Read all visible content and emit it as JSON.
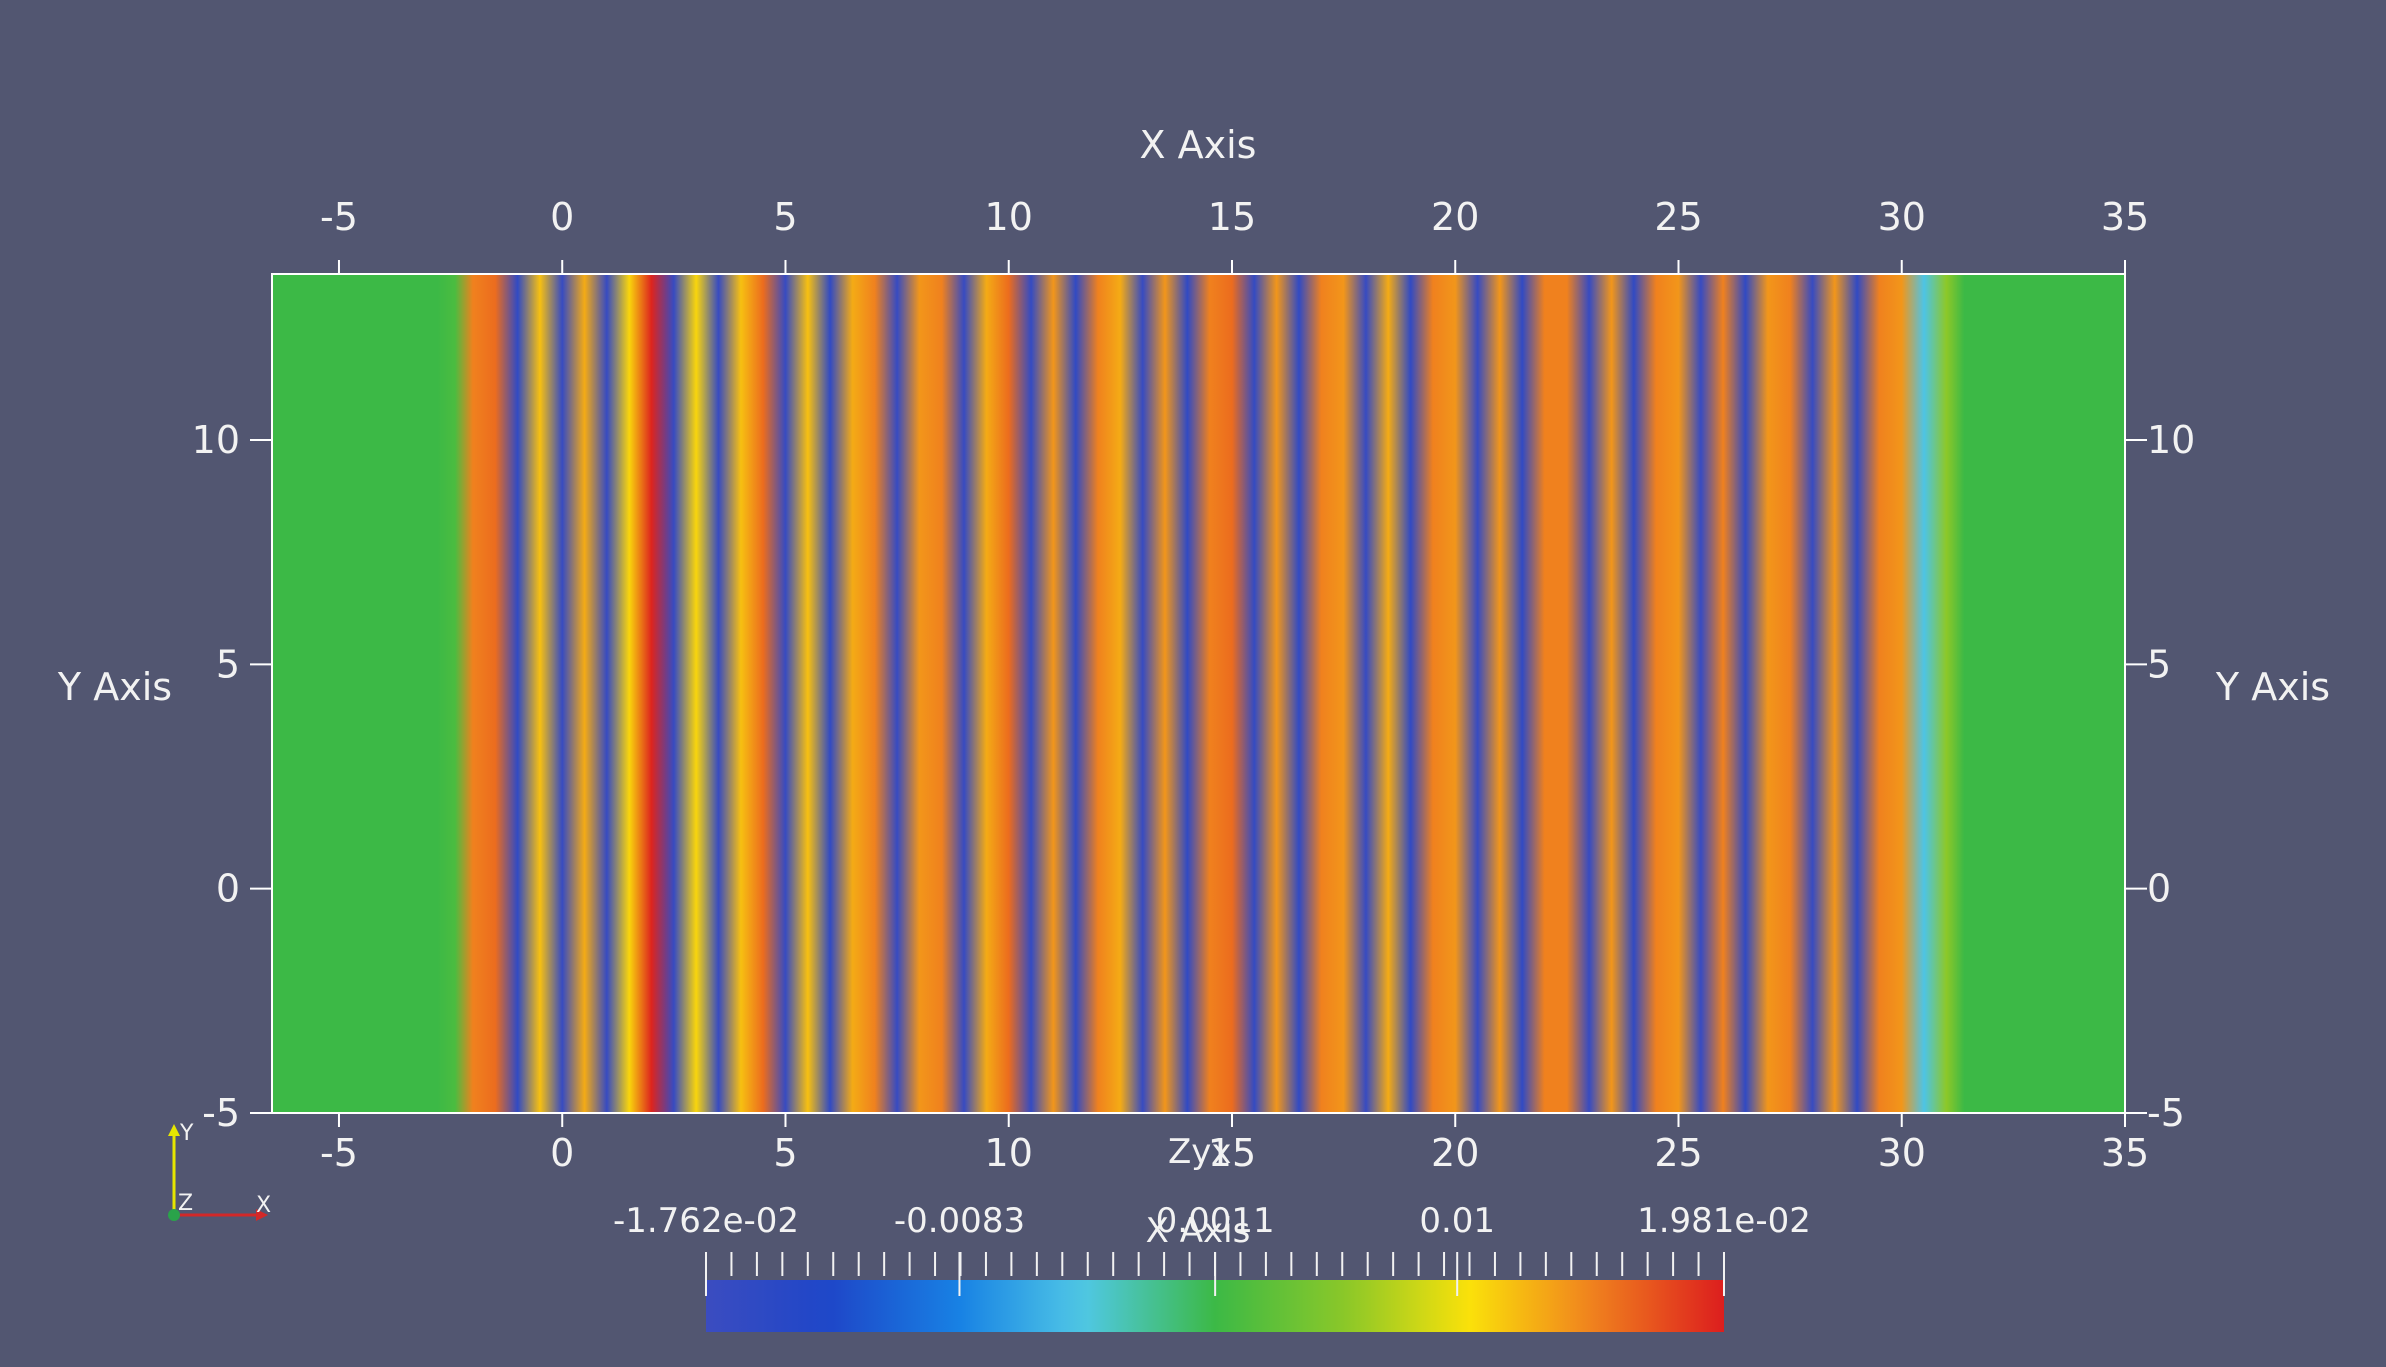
{
  "chart_data": {
    "type": "heatmap",
    "title": "",
    "xlabel": "X Axis",
    "ylabel": "Y Axis",
    "xlim": [
      -6.5,
      35
    ],
    "ylim": [
      -5,
      13.7
    ],
    "xticks": [
      -5,
      0,
      5,
      10,
      15,
      20,
      25,
      30,
      35
    ],
    "yticks": [
      -5,
      0,
      5,
      10
    ],
    "field": {
      "description_values": "vertical bands: scalar field varies only along x",
      "x": [
        -6.5,
        -2.8,
        -2.4,
        -2.0,
        -1.5,
        -1.0,
        -0.5,
        0.0,
        0.5,
        1.0,
        1.5,
        2.0,
        2.5,
        3.0,
        3.5,
        4.0,
        4.5,
        5.0,
        5.5,
        6.0,
        6.5,
        7.0,
        7.5,
        8.0,
        8.5,
        9.0,
        9.5,
        10.0,
        10.5,
        11.0,
        11.5,
        12.0,
        12.5,
        13.0,
        13.5,
        14.0,
        14.5,
        15.0,
        15.5,
        16.0,
        16.5,
        17.0,
        17.5,
        18.0,
        18.5,
        19.0,
        19.5,
        20.0,
        20.5,
        21.0,
        21.5,
        22.0,
        22.5,
        23.0,
        23.5,
        24.0,
        24.5,
        25.0,
        25.5,
        26.0,
        26.5,
        27.0,
        27.5,
        28.0,
        28.5,
        29.0,
        29.5,
        30.0,
        30.5,
        31.0,
        31.4,
        35.0
      ],
      "value": [
        0.0011,
        0.0011,
        0.002,
        0.015,
        0.016,
        -0.016,
        0.012,
        -0.017,
        0.013,
        -0.017,
        0.011,
        0.0195,
        -0.017,
        0.011,
        -0.017,
        0.012,
        0.016,
        -0.017,
        0.012,
        -0.016,
        0.013,
        0.015,
        -0.017,
        0.014,
        0.015,
        -0.017,
        0.013,
        0.016,
        -0.0165,
        0.014,
        -0.016,
        0.015,
        0.013,
        -0.017,
        0.014,
        -0.016,
        0.015,
        0.016,
        -0.0165,
        0.014,
        -0.016,
        0.015,
        0.014,
        -0.017,
        0.013,
        -0.016,
        0.015,
        0.014,
        -0.017,
        0.014,
        -0.016,
        0.015,
        0.015,
        -0.017,
        0.014,
        -0.016,
        0.015,
        0.014,
        -0.017,
        0.015,
        -0.016,
        0.014,
        0.015,
        -0.017,
        0.014,
        -0.016,
        0.015,
        0.014,
        -0.004,
        0.006,
        0.0011,
        0.0011
      ]
    },
    "colorbar": {
      "range": [
        -0.01762,
        0.01981
      ],
      "tick_labels": [
        "-1.762e-02",
        "-0.0083",
        "0.0011",
        "0.01",
        "1.981e-02"
      ],
      "tick_values": [
        -0.01762,
        -0.0083,
        0.0011,
        0.01,
        0.01981
      ],
      "colormap": "jet",
      "title": "X Axis"
    },
    "orientation_axes": {
      "labels": [
        "Y",
        "Z",
        "X"
      ]
    },
    "overlay_label": "Zyx",
    "background_color": "#525671",
    "frame_color": "#ffffff"
  }
}
